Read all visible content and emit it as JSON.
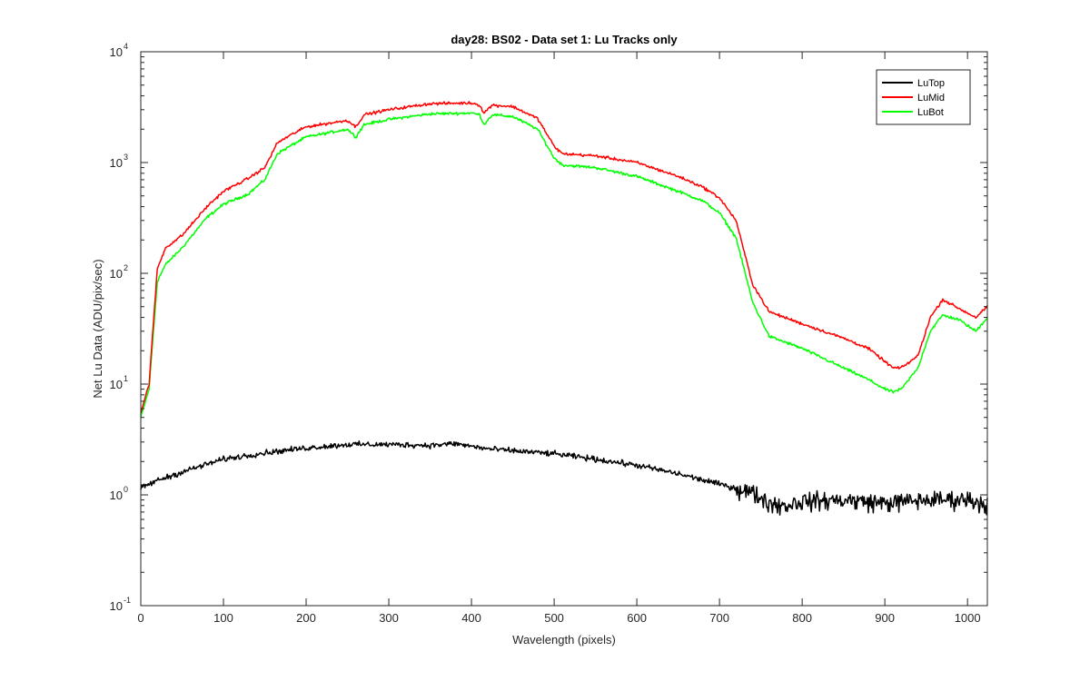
{
  "chart_data": {
    "type": "line",
    "title": "day28: BS02 - Data set 1: Lu Tracks only",
    "xlabel": "Wavelength (pixels)",
    "ylabel": "Net Lu Data (ADU/pix/sec)",
    "xlim": [
      0,
      1024
    ],
    "ylim": [
      0.1,
      10000
    ],
    "yscale": "log",
    "x_ticks": [
      "0",
      "100",
      "200",
      "300",
      "400",
      "500",
      "600",
      "700",
      "800",
      "900",
      "1000"
    ],
    "x_tick_values": [
      0,
      100,
      200,
      300,
      400,
      500,
      600,
      700,
      800,
      900,
      1000
    ],
    "y_ticks": [
      {
        "base": "10",
        "exp": "-1",
        "value": 0.1
      },
      {
        "base": "10",
        "exp": "0",
        "value": 1
      },
      {
        "base": "10",
        "exp": "1",
        "value": 10
      },
      {
        "base": "10",
        "exp": "2",
        "value": 100
      },
      {
        "base": "10",
        "exp": "3",
        "value": 1000
      },
      {
        "base": "10",
        "exp": "4",
        "value": 10000
      }
    ],
    "legend_position": "top-right",
    "series": [
      {
        "name": "LuTop",
        "color": "#000000",
        "noise": 0.05,
        "noise_high": 0.16,
        "points": [
          [
            0,
            1.15
          ],
          [
            20,
            1.35
          ],
          [
            60,
            1.7
          ],
          [
            100,
            2.1
          ],
          [
            150,
            2.4
          ],
          [
            200,
            2.65
          ],
          [
            250,
            2.85
          ],
          [
            300,
            2.85
          ],
          [
            350,
            2.8
          ],
          [
            380,
            2.9
          ],
          [
            420,
            2.6
          ],
          [
            500,
            2.35
          ],
          [
            550,
            2.1
          ],
          [
            600,
            1.85
          ],
          [
            650,
            1.55
          ],
          [
            700,
            1.25
          ],
          [
            740,
            1.05
          ],
          [
            760,
            0.85
          ],
          [
            780,
            0.8
          ],
          [
            800,
            0.88
          ],
          [
            850,
            0.9
          ],
          [
            900,
            0.85
          ],
          [
            950,
            0.9
          ],
          [
            1000,
            0.92
          ],
          [
            1024,
            0.82
          ]
        ]
      },
      {
        "name": "LuMid",
        "color": "#ff0000",
        "noise": 0.025,
        "points": [
          [
            0,
            5.5
          ],
          [
            10,
            10
          ],
          [
            20,
            110
          ],
          [
            30,
            170
          ],
          [
            50,
            220
          ],
          [
            80,
            400
          ],
          [
            100,
            550
          ],
          [
            130,
            720
          ],
          [
            150,
            900
          ],
          [
            165,
            1500
          ],
          [
            180,
            1750
          ],
          [
            200,
            2100
          ],
          [
            250,
            2400
          ],
          [
            260,
            2100
          ],
          [
            270,
            2700
          ],
          [
            300,
            3000
          ],
          [
            350,
            3400
          ],
          [
            400,
            3450
          ],
          [
            410,
            3300
          ],
          [
            415,
            2800
          ],
          [
            425,
            3300
          ],
          [
            450,
            3200
          ],
          [
            480,
            2500
          ],
          [
            500,
            1400
          ],
          [
            510,
            1200
          ],
          [
            550,
            1150
          ],
          [
            600,
            1000
          ],
          [
            650,
            750
          ],
          [
            680,
            600
          ],
          [
            700,
            480
          ],
          [
            720,
            300
          ],
          [
            740,
            80
          ],
          [
            760,
            45
          ],
          [
            800,
            35
          ],
          [
            850,
            26
          ],
          [
            880,
            21
          ],
          [
            900,
            16
          ],
          [
            910,
            14
          ],
          [
            920,
            14
          ],
          [
            940,
            18
          ],
          [
            955,
            40
          ],
          [
            970,
            58
          ],
          [
            990,
            48
          ],
          [
            1010,
            40
          ],
          [
            1024,
            50
          ]
        ]
      },
      {
        "name": "LuBot",
        "color": "#00ff00",
        "noise": 0.025,
        "points": [
          [
            0,
            5
          ],
          [
            10,
            9
          ],
          [
            20,
            85
          ],
          [
            30,
            120
          ],
          [
            50,
            170
          ],
          [
            80,
            320
          ],
          [
            100,
            420
          ],
          [
            130,
            520
          ],
          [
            150,
            700
          ],
          [
            165,
            1200
          ],
          [
            180,
            1400
          ],
          [
            200,
            1700
          ],
          [
            250,
            2000
          ],
          [
            260,
            1700
          ],
          [
            270,
            2200
          ],
          [
            300,
            2450
          ],
          [
            350,
            2750
          ],
          [
            400,
            2800
          ],
          [
            410,
            2700
          ],
          [
            415,
            2200
          ],
          [
            425,
            2700
          ],
          [
            450,
            2600
          ],
          [
            480,
            2000
          ],
          [
            500,
            1100
          ],
          [
            510,
            950
          ],
          [
            550,
            900
          ],
          [
            600,
            750
          ],
          [
            650,
            550
          ],
          [
            680,
            450
          ],
          [
            700,
            350
          ],
          [
            720,
            210
          ],
          [
            740,
            55
          ],
          [
            760,
            27
          ],
          [
            800,
            21
          ],
          [
            850,
            14
          ],
          [
            880,
            11
          ],
          [
            900,
            9
          ],
          [
            910,
            8.5
          ],
          [
            920,
            9
          ],
          [
            940,
            14
          ],
          [
            955,
            30
          ],
          [
            970,
            42
          ],
          [
            990,
            38
          ],
          [
            1010,
            30
          ],
          [
            1024,
            40
          ]
        ]
      }
    ]
  }
}
